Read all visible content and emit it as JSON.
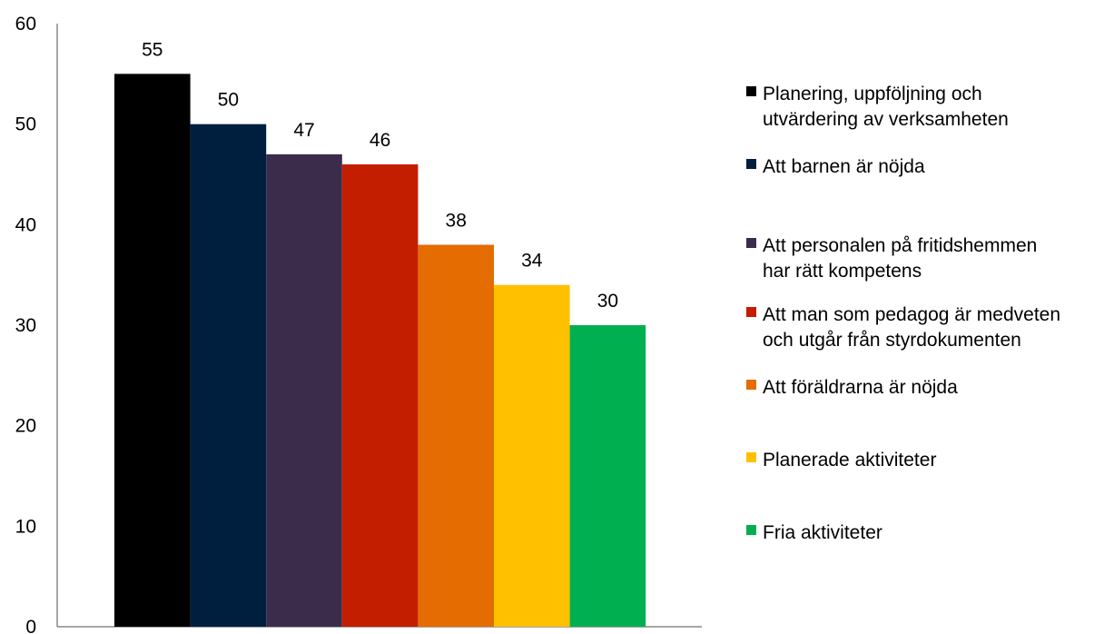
{
  "chart_data": {
    "type": "bar",
    "title": "",
    "xlabel": "",
    "ylabel": "",
    "ylim": [
      0,
      60
    ],
    "yticks": [
      0,
      10,
      20,
      30,
      40,
      50,
      60
    ],
    "grid": false,
    "legend_position": "right",
    "data_labels": true,
    "series": [
      {
        "name": "Planering, uppföljning och utvärdering av verksamheten",
        "value": 55,
        "color": "#000000"
      },
      {
        "name": "Att barnen är nöjda",
        "value": 50,
        "color": "#001F3F"
      },
      {
        "name": "Att personalen på fritidshemmen har rätt kompetens",
        "value": 47,
        "color": "#3B2C4C"
      },
      {
        "name": "Att man som pedagog är medveten och utgår från styrdokumenten",
        "value": 46,
        "color": "#C41E00"
      },
      {
        "name": "Att föräldrarna är nöjda",
        "value": 38,
        "color": "#E46C00"
      },
      {
        "name": "Planerade aktiviteter",
        "value": 34,
        "color": "#FFC000"
      },
      {
        "name": "Fria aktiviteter",
        "value": 30,
        "color": "#00B050"
      }
    ],
    "legend_lines": [
      [
        "Planering, uppföljning och",
        "utvärdering av verksamheten"
      ],
      [
        "Att barnen är nöjda"
      ],
      [
        "Att personalen på fritidshemmen",
        "har rätt kompetens"
      ],
      [
        "Att man som pedagog är medveten",
        "och utgår från styrdokumenten"
      ],
      [
        "Att föräldrarna är nöjda"
      ],
      [
        "Planerade aktiviteter"
      ],
      [
        "Fria aktiviteter"
      ]
    ]
  }
}
